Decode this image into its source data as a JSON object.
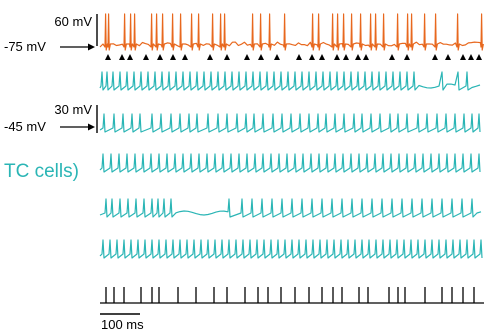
{
  "labels": {
    "top_scale": "60 mV",
    "top_rest": "-75 mV",
    "mid_scale": "30 mV",
    "mid_rest": "-45 mV",
    "group": "TC cells)",
    "time_scale": "100 ms"
  },
  "colors": {
    "top_trace": "#e8681e",
    "tc_trace": "#2ab5b5",
    "marks": "#000000"
  },
  "top_spike_times": [
    5,
    8,
    24,
    30,
    34,
    51,
    56,
    62,
    72,
    80,
    91,
    98,
    112,
    120,
    124,
    152,
    160,
    169,
    184,
    212,
    218,
    232,
    237,
    243,
    251,
    260,
    270,
    275,
    283,
    297,
    307,
    311,
    324,
    335,
    357,
    381
  ],
  "triangle_times": [
    8,
    22,
    30,
    46,
    60,
    73,
    85,
    110,
    127,
    147,
    161,
    177,
    199,
    212,
    222,
    237,
    246,
    258,
    266,
    292,
    307,
    335,
    348,
    363,
    371,
    379
  ],
  "raster_times": [
    6,
    14,
    24,
    41,
    52,
    59,
    78,
    96,
    114,
    127,
    145,
    158,
    168,
    181,
    195,
    209,
    222,
    233,
    242,
    259,
    268,
    289,
    298,
    305,
    325,
    342,
    352,
    363,
    374,
    387
  ],
  "tc_traces": [
    {
      "spikes": [
        2,
        7,
        13,
        20,
        27,
        34,
        41,
        48,
        55,
        62,
        69,
        76,
        83,
        90,
        97,
        104,
        111,
        118,
        125,
        132,
        139,
        146,
        153,
        160,
        167,
        174,
        181,
        188,
        195,
        202,
        209,
        216,
        223,
        230,
        237,
        244,
        251,
        258,
        265,
        272,
        279,
        286,
        293,
        300,
        307,
        314,
        342,
        358,
        367
      ]
    },
    {
      "spikes": [
        4,
        14,
        23,
        32,
        40,
        52,
        61,
        71,
        80,
        89,
        97,
        108,
        118,
        127,
        137,
        146,
        154,
        163,
        173,
        182,
        191,
        200,
        209,
        218,
        226,
        235,
        244,
        254,
        262,
        271,
        280,
        290,
        298,
        307,
        318,
        327,
        337,
        346,
        355,
        364,
        372,
        379
      ]
    },
    {
      "spikes": [
        3,
        11,
        19,
        27,
        35,
        43,
        51,
        59,
        67,
        75,
        83,
        91,
        99,
        107,
        115,
        123,
        131,
        139,
        147,
        155,
        163,
        171,
        179,
        187,
        195,
        203,
        211,
        219,
        227,
        235,
        243,
        251,
        259,
        267,
        275,
        283,
        291,
        299,
        307,
        315,
        323,
        331,
        339,
        347,
        355,
        363,
        371,
        379
      ]
    },
    {
      "spikes": [
        6,
        12,
        20,
        28,
        36,
        44,
        52,
        58,
        64,
        71,
        129,
        142,
        152,
        162,
        172,
        182,
        192,
        202,
        212,
        222,
        232,
        242,
        252,
        262,
        272,
        282,
        292,
        302,
        312,
        322,
        332,
        342,
        352,
        362,
        372
      ]
    },
    {
      "spikes": [
        3,
        10,
        17,
        24,
        31,
        38,
        45,
        52,
        59,
        66,
        73,
        80,
        87,
        94,
        101,
        108,
        115,
        122,
        129,
        136,
        143,
        150,
        157,
        164,
        171,
        178,
        185,
        192,
        199,
        206,
        213,
        220,
        227,
        234,
        241,
        248,
        255,
        262,
        269,
        276,
        283,
        290,
        297,
        304,
        311,
        318,
        325,
        332,
        339,
        346,
        353,
        360,
        367,
        374,
        381
      ]
    }
  ]
}
